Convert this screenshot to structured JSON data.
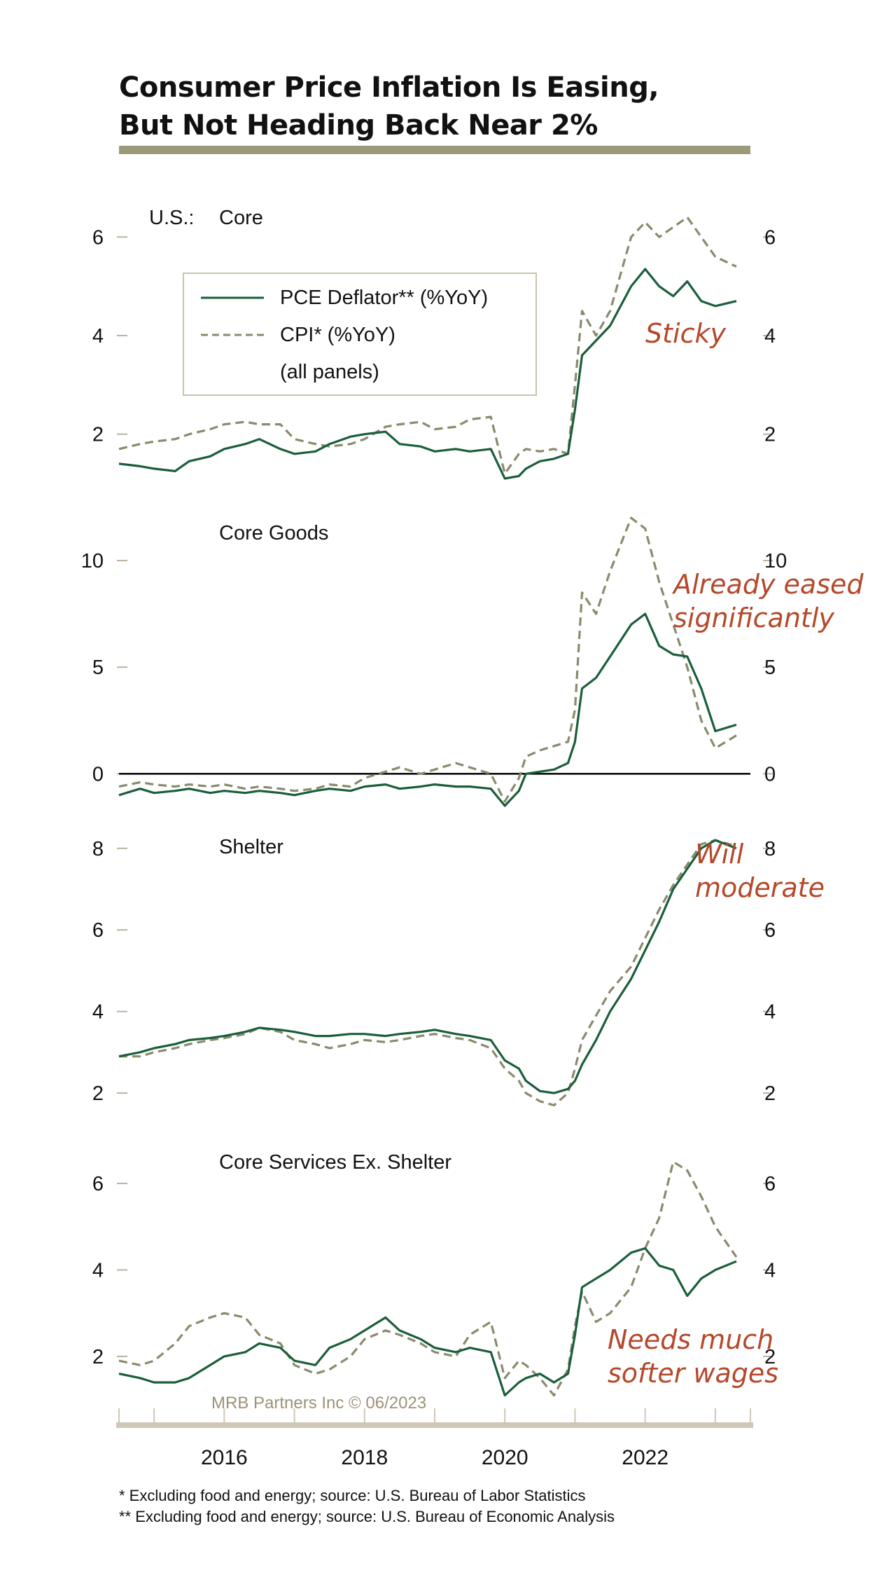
{
  "title_lines": [
    "Consumer Price Inflation Is Easing,",
    "But Not Heading Back Near 2%"
  ],
  "colors": {
    "pce": "#1b5e3b",
    "cpi": "#8a8a6c",
    "annotation": "#b5482a",
    "title_rule": "#9b9b7a",
    "axis_bottom": "#cfc7b6",
    "tick": "#b9b2a0",
    "credit": "#9c9278"
  },
  "legend": {
    "pce_label": "PCE Deflator** (%YoY)",
    "cpi_label": "CPI* (%YoY)",
    "note": "(all panels)"
  },
  "region_label": "U.S.:",
  "credit": "MRB Partners Inc © 06/2023",
  "footnotes": [
    "*  Excluding food and energy; source: U.S. Bureau of Labor Statistics",
    "** Excluding food and energy; source: U.S. Bureau of Economic Analysis"
  ],
  "chart_data": [
    {
      "type": "line",
      "title": "Core",
      "annotation": [
        "Sticky"
      ],
      "x_range": [
        2014.5,
        2023.5
      ],
      "x_ticks": [
        "2016",
        "2018",
        "2020",
        "2022"
      ],
      "ylim": [
        1.0,
        6.8
      ],
      "yticks": [
        "2",
        "4",
        "6"
      ],
      "series": [
        {
          "name": "PCE Deflator** (%YoY)",
          "x": [
            2014.5,
            2014.8,
            2015.0,
            2015.3,
            2015.5,
            2015.8,
            2016.0,
            2016.3,
            2016.5,
            2016.8,
            2017.0,
            2017.3,
            2017.5,
            2017.8,
            2018.0,
            2018.3,
            2018.5,
            2018.8,
            2019.0,
            2019.3,
            2019.5,
            2019.8,
            2020.0,
            2020.2,
            2020.3,
            2020.5,
            2020.7,
            2020.9,
            2021.0,
            2021.1,
            2021.3,
            2021.5,
            2021.8,
            2022.0,
            2022.2,
            2022.4,
            2022.6,
            2022.8,
            2023.0,
            2023.3
          ],
          "values": [
            1.4,
            1.35,
            1.3,
            1.25,
            1.45,
            1.55,
            1.7,
            1.8,
            1.9,
            1.7,
            1.6,
            1.65,
            1.8,
            1.95,
            2.0,
            2.05,
            1.8,
            1.75,
            1.65,
            1.7,
            1.65,
            1.7,
            1.1,
            1.15,
            1.3,
            1.45,
            1.5,
            1.6,
            2.5,
            3.6,
            3.9,
            4.2,
            5.0,
            5.35,
            5.0,
            4.8,
            5.1,
            4.7,
            4.6,
            4.7
          ]
        },
        {
          "name": "CPI* (%YoY)",
          "x": [
            2014.5,
            2014.8,
            2015.0,
            2015.3,
            2015.5,
            2015.8,
            2016.0,
            2016.3,
            2016.5,
            2016.8,
            2017.0,
            2017.3,
            2017.5,
            2017.8,
            2018.0,
            2018.3,
            2018.5,
            2018.8,
            2019.0,
            2019.3,
            2019.5,
            2019.8,
            2020.0,
            2020.2,
            2020.3,
            2020.5,
            2020.7,
            2020.9,
            2021.0,
            2021.1,
            2021.3,
            2021.5,
            2021.8,
            2022.0,
            2022.2,
            2022.4,
            2022.6,
            2022.8,
            2023.0,
            2023.3
          ],
          "values": [
            1.7,
            1.8,
            1.85,
            1.9,
            2.0,
            2.1,
            2.2,
            2.25,
            2.2,
            2.2,
            1.9,
            1.8,
            1.75,
            1.8,
            1.9,
            2.15,
            2.2,
            2.25,
            2.1,
            2.15,
            2.3,
            2.35,
            1.2,
            1.6,
            1.7,
            1.65,
            1.7,
            1.6,
            3.0,
            4.5,
            4.0,
            4.5,
            6.0,
            6.3,
            6.0,
            6.2,
            6.4,
            6.0,
            5.6,
            5.4
          ]
        }
      ]
    },
    {
      "type": "line",
      "title": "Core Goods",
      "annotation": [
        "Already eased",
        "significantly"
      ],
      "x_range": [
        2014.5,
        2023.5
      ],
      "x_ticks": [
        "2016",
        "2018",
        "2020",
        "2022"
      ],
      "ylim": [
        -1.5,
        12.5
      ],
      "yticks": [
        "0",
        "5",
        "10"
      ],
      "series": [
        {
          "name": "PCE Deflator** (%YoY)",
          "x": [
            2014.5,
            2014.8,
            2015.0,
            2015.3,
            2015.5,
            2015.8,
            2016.0,
            2016.3,
            2016.5,
            2016.8,
            2017.0,
            2017.3,
            2017.5,
            2017.8,
            2018.0,
            2018.3,
            2018.5,
            2018.8,
            2019.0,
            2019.3,
            2019.5,
            2019.8,
            2020.0,
            2020.2,
            2020.3,
            2020.5,
            2020.7,
            2020.9,
            2021.0,
            2021.1,
            2021.3,
            2021.5,
            2021.8,
            2022.0,
            2022.2,
            2022.4,
            2022.6,
            2022.8,
            2023.0,
            2023.3
          ],
          "values": [
            -1.0,
            -0.7,
            -0.9,
            -0.8,
            -0.7,
            -0.9,
            -0.8,
            -0.9,
            -0.8,
            -0.9,
            -1.0,
            -0.8,
            -0.7,
            -0.8,
            -0.6,
            -0.5,
            -0.7,
            -0.6,
            -0.5,
            -0.6,
            -0.6,
            -0.7,
            -1.5,
            -0.8,
            0.0,
            0.1,
            0.2,
            0.5,
            1.5,
            4.0,
            4.5,
            5.5,
            7.0,
            7.5,
            6.0,
            5.6,
            5.5,
            4.0,
            2.0,
            2.3
          ]
        },
        {
          "name": "CPI* (%YoY)",
          "x": [
            2014.5,
            2014.8,
            2015.0,
            2015.3,
            2015.5,
            2015.8,
            2016.0,
            2016.3,
            2016.5,
            2016.8,
            2017.0,
            2017.3,
            2017.5,
            2017.8,
            2018.0,
            2018.3,
            2018.5,
            2018.8,
            2019.0,
            2019.3,
            2019.5,
            2019.8,
            2020.0,
            2020.2,
            2020.3,
            2020.5,
            2020.7,
            2020.9,
            2021.0,
            2021.1,
            2021.3,
            2021.5,
            2021.8,
            2022.0,
            2022.2,
            2022.4,
            2022.6,
            2022.8,
            2023.0,
            2023.3
          ],
          "values": [
            -0.6,
            -0.4,
            -0.5,
            -0.6,
            -0.5,
            -0.6,
            -0.5,
            -0.7,
            -0.6,
            -0.7,
            -0.8,
            -0.7,
            -0.5,
            -0.6,
            -0.2,
            0.1,
            0.3,
            0.0,
            0.2,
            0.5,
            0.3,
            0.0,
            -1.3,
            -0.2,
            0.8,
            1.1,
            1.3,
            1.5,
            3.0,
            8.5,
            7.5,
            9.5,
            12.0,
            11.5,
            9.0,
            7.0,
            5.0,
            2.5,
            1.2,
            1.8
          ]
        }
      ]
    },
    {
      "type": "line",
      "title": "Shelter",
      "annotation": [
        "Will",
        "moderate"
      ],
      "x_range": [
        2014.5,
        2023.5
      ],
      "x_ticks": [
        "2016",
        "2018",
        "2020",
        "2022"
      ],
      "ylim": [
        1.4,
        8.7
      ],
      "yticks": [
        "2",
        "4",
        "6",
        "8"
      ],
      "series": [
        {
          "name": "PCE Deflator** (%YoY)",
          "x": [
            2014.5,
            2014.8,
            2015.0,
            2015.3,
            2015.5,
            2015.8,
            2016.0,
            2016.3,
            2016.5,
            2016.8,
            2017.0,
            2017.3,
            2017.5,
            2017.8,
            2018.0,
            2018.3,
            2018.5,
            2018.8,
            2019.0,
            2019.3,
            2019.5,
            2019.8,
            2020.0,
            2020.2,
            2020.3,
            2020.5,
            2020.7,
            2020.9,
            2021.0,
            2021.1,
            2021.3,
            2021.5,
            2021.8,
            2022.0,
            2022.2,
            2022.4,
            2022.6,
            2022.8,
            2023.0,
            2023.3
          ],
          "values": [
            2.9,
            3.0,
            3.1,
            3.2,
            3.3,
            3.35,
            3.4,
            3.5,
            3.6,
            3.55,
            3.5,
            3.4,
            3.4,
            3.45,
            3.45,
            3.4,
            3.45,
            3.5,
            3.55,
            3.45,
            3.4,
            3.3,
            2.8,
            2.6,
            2.3,
            2.05,
            2.0,
            2.1,
            2.3,
            2.7,
            3.3,
            4.0,
            4.8,
            5.5,
            6.2,
            7.0,
            7.5,
            8.0,
            8.2,
            8.0
          ]
        },
        {
          "name": "CPI* (%YoY)",
          "x": [
            2014.5,
            2014.8,
            2015.0,
            2015.3,
            2015.5,
            2015.8,
            2016.0,
            2016.3,
            2016.5,
            2016.8,
            2017.0,
            2017.3,
            2017.5,
            2017.8,
            2018.0,
            2018.3,
            2018.5,
            2018.8,
            2019.0,
            2019.3,
            2019.5,
            2019.8,
            2020.0,
            2020.2,
            2020.3,
            2020.5,
            2020.7,
            2020.9,
            2021.0,
            2021.1,
            2021.3,
            2021.5,
            2021.8,
            2022.0,
            2022.2,
            2022.4,
            2022.6,
            2022.8,
            2023.0,
            2023.3
          ],
          "values": [
            2.9,
            2.9,
            3.0,
            3.1,
            3.2,
            3.3,
            3.35,
            3.45,
            3.6,
            3.5,
            3.3,
            3.2,
            3.1,
            3.2,
            3.3,
            3.25,
            3.3,
            3.4,
            3.45,
            3.35,
            3.3,
            3.1,
            2.6,
            2.3,
            2.0,
            1.8,
            1.7,
            2.0,
            2.6,
            3.3,
            3.9,
            4.5,
            5.1,
            5.8,
            6.5,
            7.1,
            7.6,
            8.1,
            8.2,
            8.05
          ]
        }
      ]
    },
    {
      "type": "line",
      "title": "Core Services Ex. Shelter",
      "annotation": [
        "Needs much",
        "softer wages"
      ],
      "x_range": [
        2014.5,
        2023.5
      ],
      "x_ticks": [
        "2016",
        "2018",
        "2020",
        "2022"
      ],
      "ylim": [
        0.8,
        7.2
      ],
      "yticks": [
        "2",
        "4",
        "6"
      ],
      "series": [
        {
          "name": "PCE Deflator** (%YoY)",
          "x": [
            2014.5,
            2014.8,
            2015.0,
            2015.3,
            2015.5,
            2015.8,
            2016.0,
            2016.3,
            2016.5,
            2016.8,
            2017.0,
            2017.3,
            2017.5,
            2017.8,
            2018.0,
            2018.3,
            2018.5,
            2018.8,
            2019.0,
            2019.3,
            2019.5,
            2019.8,
            2020.0,
            2020.2,
            2020.3,
            2020.5,
            2020.7,
            2020.9,
            2021.0,
            2021.1,
            2021.3,
            2021.5,
            2021.8,
            2022.0,
            2022.2,
            2022.4,
            2022.6,
            2022.8,
            2023.0,
            2023.3
          ],
          "values": [
            1.6,
            1.5,
            1.4,
            1.4,
            1.5,
            1.8,
            2.0,
            2.1,
            2.3,
            2.2,
            1.9,
            1.8,
            2.2,
            2.4,
            2.6,
            2.9,
            2.6,
            2.4,
            2.2,
            2.1,
            2.2,
            2.1,
            1.1,
            1.4,
            1.5,
            1.6,
            1.4,
            1.6,
            2.5,
            3.6,
            3.8,
            4.0,
            4.4,
            4.5,
            4.1,
            4.0,
            3.4,
            3.8,
            4.0,
            4.2
          ]
        },
        {
          "name": "CPI* (%YoY)",
          "x": [
            2014.5,
            2014.8,
            2015.0,
            2015.3,
            2015.5,
            2015.8,
            2016.0,
            2016.3,
            2016.5,
            2016.8,
            2017.0,
            2017.3,
            2017.5,
            2017.8,
            2018.0,
            2018.3,
            2018.5,
            2018.8,
            2019.0,
            2019.3,
            2019.5,
            2019.8,
            2020.0,
            2020.2,
            2020.3,
            2020.5,
            2020.7,
            2020.9,
            2021.0,
            2021.1,
            2021.3,
            2021.5,
            2021.8,
            2022.0,
            2022.2,
            2022.4,
            2022.6,
            2022.8,
            2023.0,
            2023.3
          ],
          "values": [
            1.9,
            1.8,
            1.9,
            2.3,
            2.7,
            2.9,
            3.0,
            2.9,
            2.5,
            2.3,
            1.8,
            1.6,
            1.7,
            2.0,
            2.4,
            2.6,
            2.5,
            2.3,
            2.1,
            2.0,
            2.5,
            2.8,
            1.5,
            1.9,
            1.8,
            1.5,
            1.1,
            1.7,
            2.7,
            3.5,
            2.8,
            3.0,
            3.6,
            4.5,
            5.2,
            6.5,
            6.3,
            5.7,
            5.0,
            4.3
          ]
        }
      ]
    }
  ]
}
